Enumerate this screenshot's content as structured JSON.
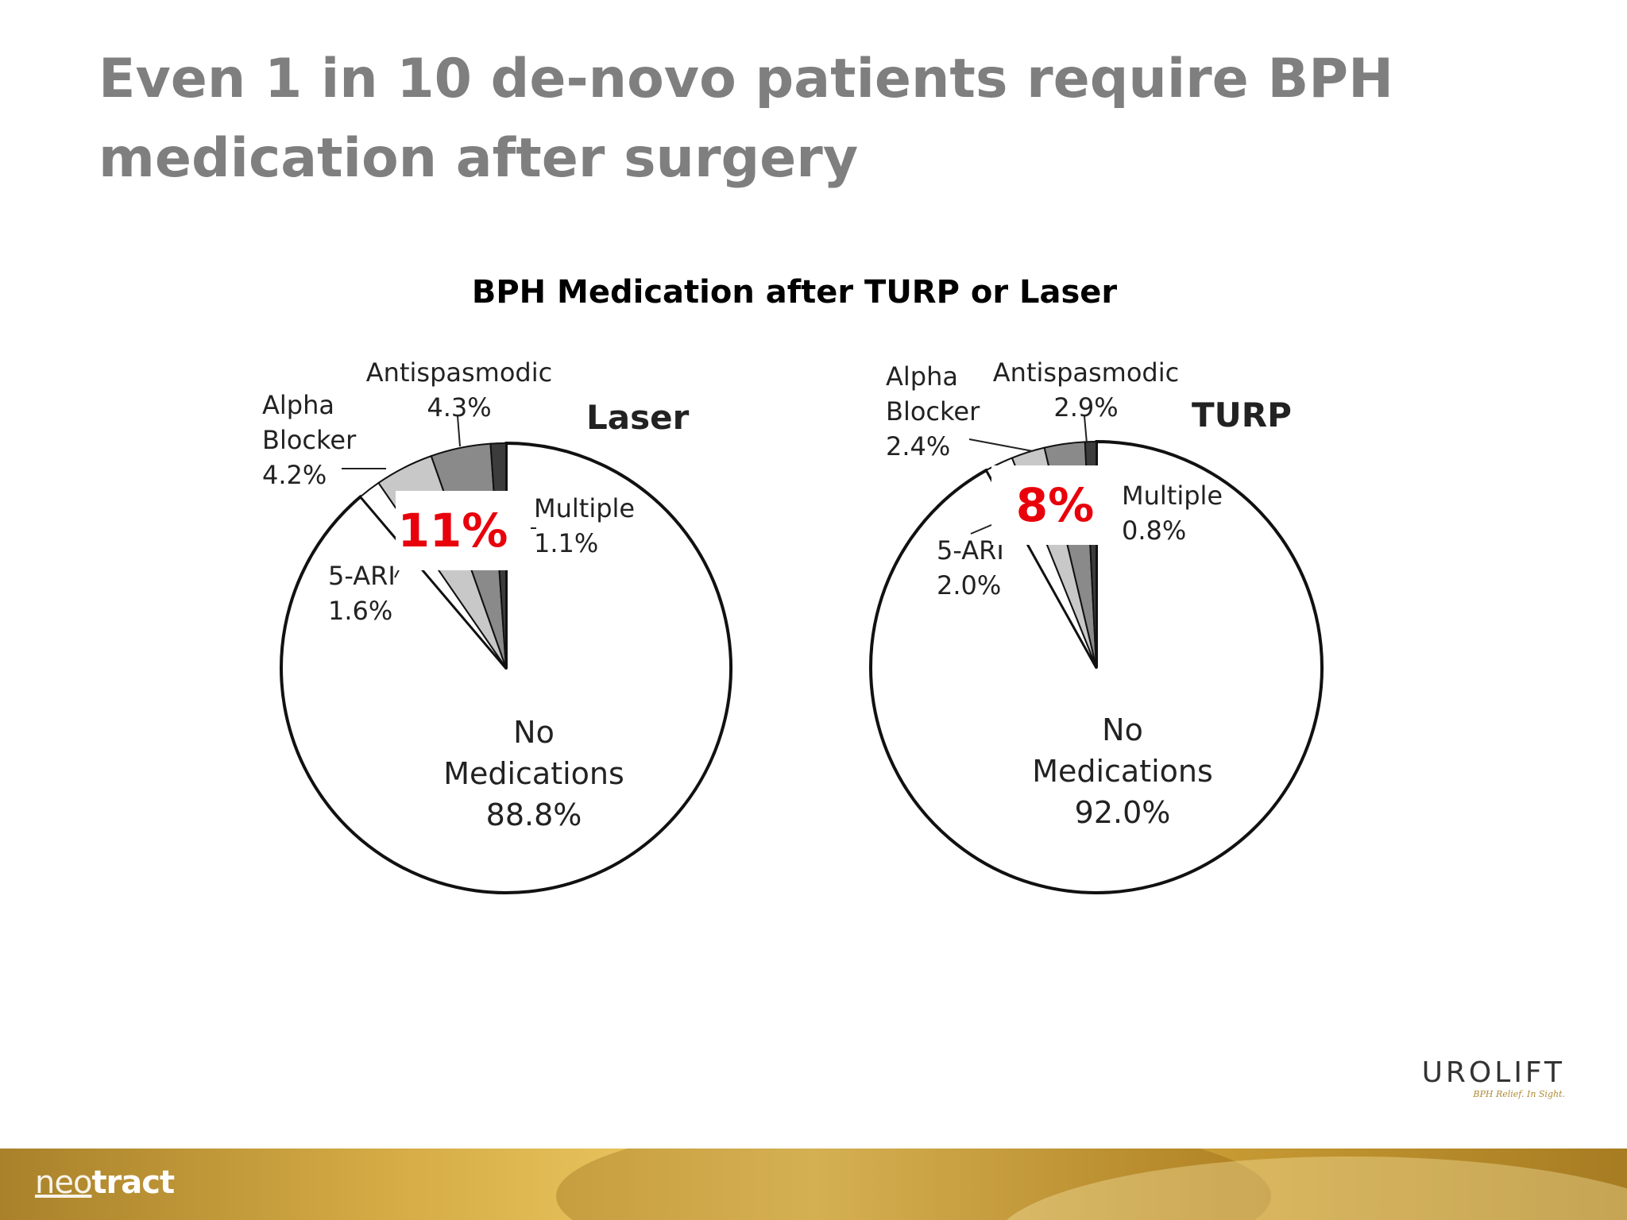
{
  "slide": {
    "title_lines": [
      "Even 1 in 10 de-novo patients require BPH",
      "medication after surgery"
    ]
  },
  "chart_heading": "BPH Medication after TURP or Laser",
  "callouts": {
    "laser": "11%",
    "turp": "8%"
  },
  "colors": {
    "no_medications": "#ffffff",
    "five_ari": "#ffffff",
    "alpha_blocker": "#c8c8c8",
    "antispasmodic": "#8a8a8a",
    "multiple": "#3c3c3c",
    "callout_text": "#e8000b"
  },
  "chart_data": [
    {
      "type": "pie",
      "title": "Laser",
      "slices": [
        {
          "label_lines": [
            "No",
            "Medications"
          ],
          "value_text": "88.8%",
          "value": 88.8,
          "color": "#ffffff"
        },
        {
          "label_lines": [
            "5-ARI"
          ],
          "value_text": "1.6%",
          "value": 1.6,
          "color": "#ffffff"
        },
        {
          "label_lines": [
            "Alpha",
            "Blocker"
          ],
          "value_text": "4.2%",
          "value": 4.2,
          "color": "#c8c8c8"
        },
        {
          "label_lines": [
            "Antispasmodic"
          ],
          "value_text": "4.3%",
          "value": 4.3,
          "color": "#8a8a8a"
        },
        {
          "label_lines": [
            "Multiple"
          ],
          "value_text": "1.1%",
          "value": 1.1,
          "color": "#3c3c3c"
        }
      ]
    },
    {
      "type": "pie",
      "title": "TURP",
      "slices": [
        {
          "label_lines": [
            "No",
            "Medications"
          ],
          "value_text": "92.0%",
          "value": 92.0,
          "color": "#ffffff"
        },
        {
          "label_lines": [
            "5-ARI"
          ],
          "value_text": "2.0%",
          "value": 2.0,
          "color": "#ffffff"
        },
        {
          "label_lines": [
            "Alpha",
            "Blocker"
          ],
          "value_text": "2.4%",
          "value": 2.4,
          "color": "#c8c8c8"
        },
        {
          "label_lines": [
            "Antispasmodic"
          ],
          "value_text": "2.9%",
          "value": 2.9,
          "color": "#8a8a8a"
        },
        {
          "label_lines": [
            "Multiple"
          ],
          "value_text": "0.8%",
          "value": 0.8,
          "color": "#3c3c3c"
        }
      ]
    }
  ],
  "footer": {
    "logo_thin": "neo",
    "logo_bold": "tract"
  },
  "brand": {
    "name": "UROLIFT",
    "tagline": "BPH Relief. In Sight."
  }
}
